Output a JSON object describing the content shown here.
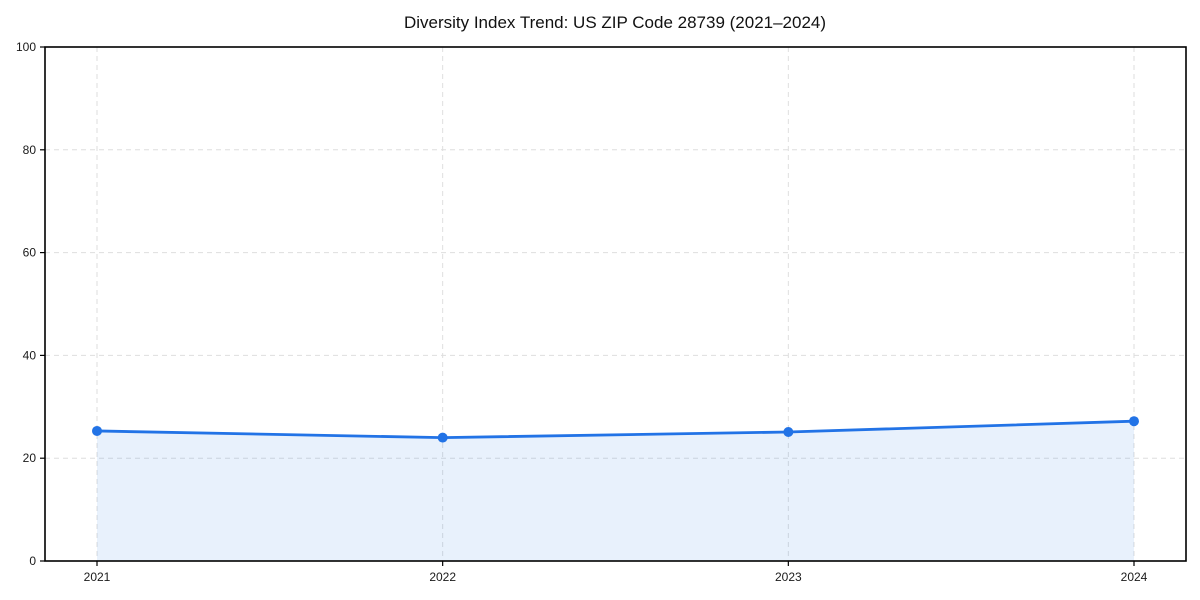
{
  "title": "Diversity Index Trend: US ZIP Code 28739 (2021–2024)",
  "chart_data": {
    "type": "area",
    "categories": [
      "2021",
      "2022",
      "2023",
      "2024"
    ],
    "series": [
      {
        "name": "Diversity Index",
        "values": [
          25.3,
          24.0,
          25.1,
          27.2
        ]
      }
    ],
    "title": "Diversity Index Trend: US ZIP Code 28739 (2021–2024)",
    "xlabel": "",
    "ylabel": "",
    "ylim": [
      0,
      100
    ],
    "yticks": [
      0,
      20,
      40,
      60,
      80,
      100
    ],
    "grid": true,
    "grid_style": "dashed",
    "legend": false,
    "colors": {
      "line": "#2273e6",
      "marker": "#2273e6",
      "fill": "#2273e6",
      "fill_opacity": 0.1,
      "grid": "#dedede",
      "axis": "#000000",
      "tick_text": "#1a1a1a",
      "title_text": "#111111",
      "background": "#ffffff"
    }
  }
}
